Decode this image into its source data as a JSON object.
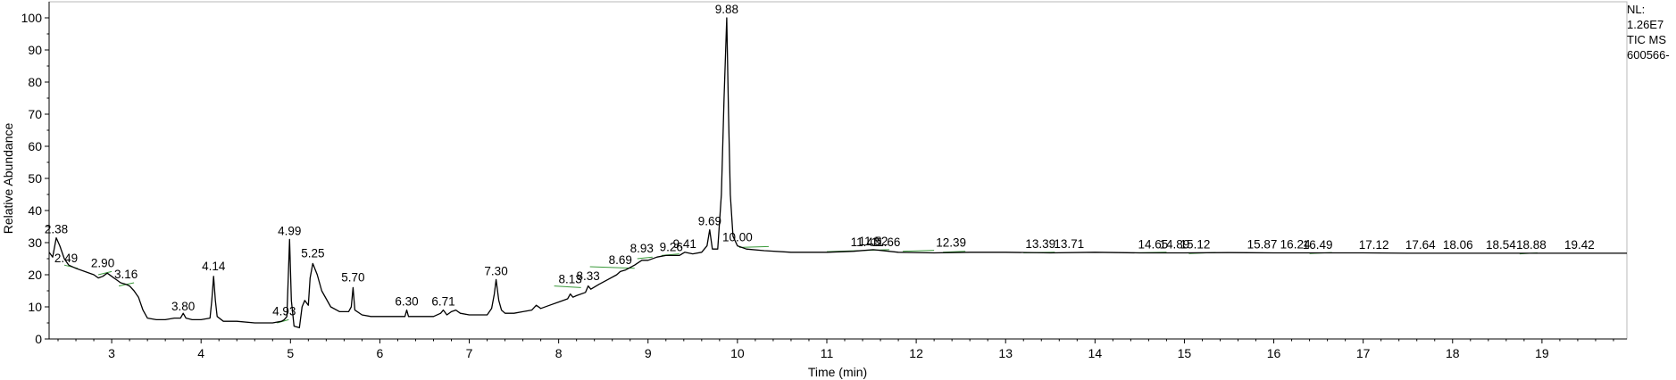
{
  "chart_data": {
    "type": "line",
    "xlabel": "Time (min)",
    "ylabel": "Relative Abundance",
    "xlim": [
      2.3,
      19.95
    ],
    "ylim": [
      0,
      105
    ],
    "x_ticks": [
      3,
      4,
      5,
      6,
      7,
      8,
      9,
      10,
      11,
      12,
      13,
      14,
      15,
      16,
      17,
      18,
      19
    ],
    "y_ticks": [
      0,
      10,
      20,
      30,
      40,
      50,
      60,
      70,
      80,
      90,
      100
    ],
    "grid": false,
    "side_info": [
      "NL:",
      "1.26E7",
      "TIC  MS",
      "600566-"
    ],
    "peaks": [
      {
        "rt": 2.38,
        "label": "2.38",
        "y": 31.5
      },
      {
        "rt": 2.49,
        "label": "2.49",
        "y": 22.5
      },
      {
        "rt": 2.9,
        "label": "2.90",
        "y": 21.0
      },
      {
        "rt": 3.16,
        "label": "3.16",
        "y": 17.5
      },
      {
        "rt": 3.8,
        "label": "3.80",
        "y": 7.5
      },
      {
        "rt": 4.14,
        "label": "4.14",
        "y": 20.0
      },
      {
        "rt": 4.93,
        "label": "4.93",
        "y": 6.0
      },
      {
        "rt": 4.99,
        "label": "4.99",
        "y": 31.0
      },
      {
        "rt": 5.25,
        "label": "5.25",
        "y": 24.0
      },
      {
        "rt": 5.7,
        "label": "5.70",
        "y": 16.5
      },
      {
        "rt": 6.3,
        "label": "6.30",
        "y": 9.0
      },
      {
        "rt": 6.71,
        "label": "6.71",
        "y": 9.0
      },
      {
        "rt": 7.3,
        "label": "7.30",
        "y": 18.5
      },
      {
        "rt": 8.13,
        "label": "8.13",
        "y": 16.0
      },
      {
        "rt": 8.33,
        "label": "8.33",
        "y": 17.0
      },
      {
        "rt": 8.69,
        "label": "8.69",
        "y": 22.0
      },
      {
        "rt": 8.93,
        "label": "8.93",
        "y": 25.5
      },
      {
        "rt": 9.26,
        "label": "9.26",
        "y": 26.0
      },
      {
        "rt": 9.41,
        "label": "9.41",
        "y": 27.0
      },
      {
        "rt": 9.69,
        "label": "9.69",
        "y": 34.0
      },
      {
        "rt": 9.88,
        "label": "9.88",
        "y": 100.0
      },
      {
        "rt": 10.0,
        "label": "10.00",
        "y": 29.0
      },
      {
        "rt": 11.43,
        "label": "11.43",
        "y": 27.5
      },
      {
        "rt": 11.52,
        "label": "11.52",
        "y": 27.8
      },
      {
        "rt": 11.66,
        "label": "11.66",
        "y": 27.5
      },
      {
        "rt": 12.39,
        "label": "12.39",
        "y": 27.3
      },
      {
        "rt": 13.39,
        "label": "13.39",
        "y": 27.0
      },
      {
        "rt": 13.71,
        "label": "13.71",
        "y": 27.0
      },
      {
        "rt": 14.65,
        "label": "14.65",
        "y": 26.8
      },
      {
        "rt": 14.89,
        "label": "14.89",
        "y": 26.8
      },
      {
        "rt": 15.12,
        "label": "15.12",
        "y": 26.8
      },
      {
        "rt": 15.87,
        "label": "15.87",
        "y": 26.8
      },
      {
        "rt": 16.24,
        "label": "16.24",
        "y": 26.8
      },
      {
        "rt": 16.49,
        "label": "16.49",
        "y": 26.7
      },
      {
        "rt": 17.12,
        "label": "17.12",
        "y": 26.7
      },
      {
        "rt": 17.64,
        "label": "17.64",
        "y": 26.7
      },
      {
        "rt": 18.06,
        "label": "18.06",
        "y": 26.7
      },
      {
        "rt": 18.54,
        "label": "18.54",
        "y": 26.7
      },
      {
        "rt": 18.88,
        "label": "18.88",
        "y": 26.7
      },
      {
        "rt": 19.42,
        "label": "19.42",
        "y": 26.7
      }
    ],
    "series": [
      {
        "color": "#000000",
        "x": [
          2.3,
          2.34,
          2.38,
          2.42,
          2.47,
          2.52,
          2.6,
          2.7,
          2.8,
          2.85,
          2.9,
          2.95,
          3.0,
          3.05,
          3.1,
          3.16,
          3.2,
          3.25,
          3.3,
          3.35,
          3.4,
          3.5,
          3.6,
          3.7,
          3.77,
          3.8,
          3.83,
          3.9,
          4.0,
          4.1,
          4.12,
          4.14,
          4.16,
          4.18,
          4.25,
          4.4,
          4.6,
          4.8,
          4.9,
          4.93,
          4.96,
          4.99,
          5.01,
          5.04,
          5.1,
          5.13,
          5.16,
          5.2,
          5.22,
          5.25,
          5.3,
          5.35,
          5.45,
          5.55,
          5.65,
          5.68,
          5.7,
          5.72,
          5.8,
          5.9,
          6.0,
          6.1,
          6.2,
          6.28,
          6.3,
          6.32,
          6.4,
          6.5,
          6.6,
          6.68,
          6.71,
          6.75,
          6.8,
          6.85,
          6.9,
          7.0,
          7.1,
          7.2,
          7.25,
          7.28,
          7.3,
          7.33,
          7.36,
          7.4,
          7.5,
          7.6,
          7.7,
          7.75,
          7.8,
          7.9,
          8.0,
          8.1,
          8.13,
          8.16,
          8.2,
          8.3,
          8.33,
          8.36,
          8.45,
          8.55,
          8.65,
          8.69,
          8.75,
          8.85,
          8.93,
          9.0,
          9.1,
          9.2,
          9.26,
          9.35,
          9.41,
          9.5,
          9.6,
          9.66,
          9.69,
          9.72,
          9.78,
          9.82,
          9.85,
          9.88,
          9.9,
          9.92,
          9.95,
          10.0,
          10.1,
          10.3,
          10.6,
          11.0,
          11.3,
          11.52,
          11.8,
          12.2,
          12.6,
          13.0,
          13.5,
          14.0,
          14.5,
          15.0,
          15.5,
          16.0,
          16.5,
          17.0,
          17.5,
          18.0,
          18.5,
          19.0,
          19.5,
          19.95
        ],
        "y": [
          27.0,
          25.5,
          31.5,
          29.0,
          25.0,
          23.0,
          22.0,
          21.0,
          20.0,
          19.0,
          19.5,
          20.5,
          19.5,
          18.5,
          17.5,
          17.0,
          16.5,
          15.0,
          13.0,
          9.0,
          6.5,
          6.0,
          6.0,
          6.5,
          6.5,
          8.0,
          6.5,
          6.0,
          6.0,
          6.5,
          12.0,
          19.5,
          12.0,
          7.0,
          5.5,
          5.5,
          5.0,
          5.0,
          5.5,
          6.0,
          7.0,
          31.0,
          12.0,
          4.0,
          3.5,
          10.0,
          12.0,
          10.5,
          19.0,
          23.5,
          20.0,
          15.0,
          10.0,
          8.5,
          8.5,
          10.0,
          16.0,
          9.0,
          7.5,
          7.0,
          7.0,
          7.0,
          7.0,
          7.0,
          9.0,
          7.0,
          7.0,
          7.0,
          7.0,
          8.0,
          9.0,
          7.5,
          8.5,
          9.0,
          8.0,
          7.5,
          7.5,
          7.5,
          9.5,
          14.0,
          18.5,
          12.0,
          9.0,
          8.0,
          8.0,
          8.5,
          9.0,
          10.5,
          9.5,
          10.5,
          11.5,
          12.5,
          14.0,
          13.0,
          13.5,
          14.5,
          16.5,
          15.5,
          17.0,
          18.5,
          20.0,
          21.0,
          21.5,
          23.0,
          24.5,
          24.5,
          25.5,
          26.0,
          26.0,
          26.0,
          27.0,
          26.5,
          27.0,
          29.0,
          34.0,
          28.0,
          28.0,
          45.0,
          75.0,
          100.0,
          70.0,
          45.0,
          32.0,
          29.0,
          28.0,
          27.5,
          27.0,
          27.0,
          27.3,
          27.8,
          27.0,
          26.8,
          27.0,
          27.0,
          26.8,
          27.0,
          26.8,
          26.8,
          26.9,
          26.8,
          26.8,
          26.8,
          26.7,
          26.7,
          26.7,
          26.7,
          26.7,
          26.7
        ]
      }
    ],
    "integration_baselines": [
      {
        "x": [
          2.47,
          2.62
        ],
        "y": [
          23.0,
          22.0
        ]
      },
      {
        "x": [
          2.85,
          3.0
        ],
        "y": [
          20.0,
          21.0
        ]
      },
      {
        "x": [
          3.08,
          3.25
        ],
        "y": [
          16.5,
          17.5
        ]
      },
      {
        "x": [
          4.85,
          4.98
        ],
        "y": [
          5.0,
          6.0
        ]
      },
      {
        "x": [
          7.95,
          8.25
        ],
        "y": [
          16.5,
          16.0
        ]
      },
      {
        "x": [
          8.35,
          8.85
        ],
        "y": [
          22.5,
          22.0
        ]
      },
      {
        "x": [
          8.88,
          9.05
        ],
        "y": [
          25.0,
          25.5
        ]
      },
      {
        "x": [
          9.15,
          9.35
        ],
        "y": [
          26.0,
          26.5
        ]
      },
      {
        "x": [
          10.02,
          10.35
        ],
        "y": [
          28.5,
          28.8
        ]
      },
      {
        "x": [
          11.0,
          11.7
        ],
        "y": [
          27.2,
          27.8
        ]
      },
      {
        "x": [
          11.85,
          12.2
        ],
        "y": [
          27.3,
          27.6
        ]
      },
      {
        "x": [
          12.3,
          12.55
        ],
        "y": [
          27.0,
          27.3
        ]
      },
      {
        "x": [
          13.2,
          13.55
        ],
        "y": [
          26.8,
          27.0
        ]
      },
      {
        "x": [
          14.4,
          14.8
        ],
        "y": [
          26.8,
          27.0
        ]
      },
      {
        "x": [
          15.05,
          15.35
        ],
        "y": [
          26.6,
          26.9
        ]
      },
      {
        "x": [
          16.4,
          16.65
        ],
        "y": [
          26.6,
          26.9
        ]
      },
      {
        "x": [
          18.75,
          18.95
        ],
        "y": [
          26.5,
          26.8
        ]
      }
    ]
  }
}
